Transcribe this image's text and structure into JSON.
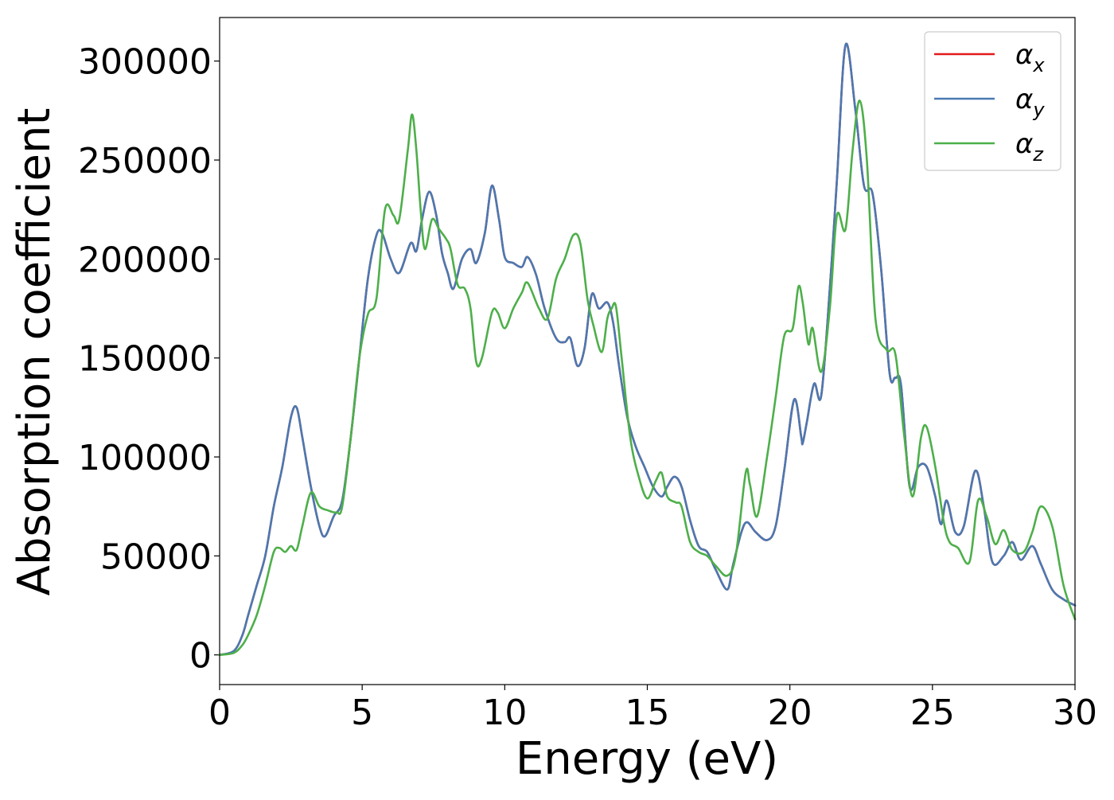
{
  "chart_data": {
    "type": "line",
    "title": "",
    "xlabel": "Energy (eV)",
    "ylabel": "Absorption coefficient",
    "xlim": [
      0,
      30
    ],
    "ylim": [
      -15000,
      322000
    ],
    "xticks": [
      0,
      5,
      10,
      15,
      20,
      25,
      30
    ],
    "xtick_labels": [
      "0",
      "5",
      "10",
      "15",
      "20",
      "25",
      "30"
    ],
    "yticks": [
      0,
      50000,
      100000,
      150000,
      200000,
      250000,
      300000
    ],
    "ytick_labels": [
      "0",
      "50000",
      "100000",
      "150000",
      "200000",
      "250000",
      "300000"
    ],
    "grid": false,
    "legend_position": "top-right",
    "series": [
      {
        "name": "α_x",
        "legend_base": "α",
        "legend_sub": "x",
        "color": "#e41a1c",
        "x": [
          0,
          0.5,
          0.8,
          1,
          1.3,
          1.6,
          1.9,
          2.2,
          2.5,
          2.7,
          2.9,
          3.2,
          3.5,
          3.7,
          4,
          4.3,
          4.6,
          4.9,
          5.2,
          5.5,
          5.7,
          6,
          6.3,
          6.7,
          6.9,
          7.1,
          7.35,
          7.6,
          7.8,
          8,
          8.2,
          8.5,
          8.8,
          9,
          9.3,
          9.55,
          9.8,
          10,
          10.3,
          10.6,
          10.8,
          11.1,
          11.4,
          11.8,
          12.1,
          12.3,
          12.55,
          12.8,
          13.05,
          13.3,
          13.6,
          13.8,
          14,
          14.3,
          14.6,
          14.9,
          15.2,
          15.5,
          15.7,
          15.95,
          16.2,
          16.5,
          16.8,
          17.1,
          17.4,
          17.8,
          18,
          18.3,
          18.5,
          18.8,
          19.2,
          19.5,
          19.8,
          20.15,
          20.4,
          20.45,
          20.6,
          20.85,
          21.1,
          21.4,
          21.65,
          21.95,
          22.3,
          22.6,
          22.9,
          23.2,
          23.5,
          23.7,
          23.9,
          24.2,
          24.5,
          24.8,
          25.1,
          25.3,
          25.5,
          25.8,
          26.1,
          26.5,
          26.8,
          27.1,
          27.5,
          27.8,
          28.1,
          28.5,
          28.8,
          29.2,
          29.6,
          30
        ],
        "y": [
          0,
          2000,
          10000,
          20000,
          35000,
          50000,
          75000,
          95000,
          120000,
          125000,
          110000,
          85000,
          65000,
          60000,
          70000,
          78000,
          110000,
          150000,
          190000,
          212000,
          213000,
          200000,
          193000,
          208000,
          204000,
          220000,
          234000,
          222000,
          203000,
          193000,
          185000,
          200000,
          205000,
          198000,
          213000,
          237000,
          220000,
          201000,
          198000,
          196000,
          201000,
          192000,
          175000,
          160000,
          158000,
          160000,
          146000,
          155000,
          182000,
          175000,
          178000,
          168000,
          147000,
          120000,
          105000,
          95000,
          85000,
          80000,
          85000,
          90000,
          85000,
          68000,
          55000,
          52000,
          43000,
          33000,
          45000,
          62000,
          67000,
          62000,
          58000,
          65000,
          93000,
          129000,
          110000,
          107000,
          118000,
          137000,
          131000,
          185000,
          240000,
          308000,
          275000,
          237000,
          233000,
          195000,
          142000,
          140000,
          136000,
          85000,
          95000,
          95000,
          80000,
          66000,
          78000,
          62000,
          65000,
          93000,
          75000,
          47000,
          50000,
          57000,
          48000,
          55000,
          46000,
          33000,
          28000,
          25000
        ]
      },
      {
        "name": "α_y",
        "legend_base": "α",
        "legend_sub": "y",
        "color": "#4a79b1",
        "x": [
          0,
          0.5,
          0.8,
          1,
          1.3,
          1.6,
          1.9,
          2.2,
          2.5,
          2.7,
          2.9,
          3.2,
          3.5,
          3.7,
          4,
          4.3,
          4.6,
          4.9,
          5.2,
          5.5,
          5.7,
          6,
          6.3,
          6.7,
          6.9,
          7.1,
          7.35,
          7.6,
          7.8,
          8,
          8.2,
          8.5,
          8.8,
          9,
          9.3,
          9.55,
          9.8,
          10,
          10.3,
          10.6,
          10.8,
          11.1,
          11.4,
          11.8,
          12.1,
          12.3,
          12.55,
          12.8,
          13.05,
          13.3,
          13.6,
          13.8,
          14,
          14.3,
          14.6,
          14.9,
          15.2,
          15.5,
          15.7,
          15.95,
          16.2,
          16.5,
          16.8,
          17.1,
          17.4,
          17.8,
          18,
          18.3,
          18.5,
          18.8,
          19.2,
          19.5,
          19.8,
          20.15,
          20.4,
          20.45,
          20.6,
          20.85,
          21.1,
          21.4,
          21.65,
          21.95,
          22.3,
          22.6,
          22.9,
          23.2,
          23.5,
          23.7,
          23.9,
          24.2,
          24.5,
          24.8,
          25.1,
          25.3,
          25.5,
          25.8,
          26.1,
          26.5,
          26.8,
          27.1,
          27.5,
          27.8,
          28.1,
          28.5,
          28.8,
          29.2,
          29.6,
          30
        ],
        "y": [
          0,
          2000,
          10000,
          20000,
          35000,
          50000,
          75000,
          95000,
          120000,
          125000,
          110000,
          85000,
          65000,
          60000,
          70000,
          78000,
          110000,
          150000,
          190000,
          212000,
          213000,
          200000,
          193000,
          208000,
          204000,
          220000,
          234000,
          222000,
          203000,
          193000,
          185000,
          200000,
          205000,
          198000,
          213000,
          237000,
          220000,
          201000,
          198000,
          196000,
          201000,
          192000,
          175000,
          160000,
          158000,
          160000,
          146000,
          155000,
          182000,
          175000,
          178000,
          168000,
          147000,
          120000,
          105000,
          95000,
          85000,
          80000,
          85000,
          90000,
          85000,
          68000,
          55000,
          52000,
          43000,
          33000,
          45000,
          62000,
          67000,
          62000,
          58000,
          65000,
          93000,
          129000,
          110000,
          107000,
          118000,
          137000,
          131000,
          185000,
          240000,
          308000,
          275000,
          237000,
          233000,
          195000,
          142000,
          140000,
          136000,
          85000,
          95000,
          95000,
          80000,
          66000,
          78000,
          62000,
          65000,
          93000,
          75000,
          47000,
          50000,
          57000,
          48000,
          55000,
          46000,
          33000,
          28000,
          25000
        ]
      },
      {
        "name": "α_z",
        "legend_base": "α",
        "legend_sub": "z",
        "color": "#4daf4a",
        "x": [
          0,
          0.5,
          0.8,
          1,
          1.3,
          1.6,
          1.9,
          2.1,
          2.3,
          2.5,
          2.7,
          2.9,
          3.2,
          3.5,
          3.8,
          4.1,
          4.3,
          4.6,
          4.9,
          5.2,
          5.5,
          5.8,
          6.1,
          6.3,
          6.6,
          6.75,
          6.9,
          7.05,
          7.2,
          7.45,
          7.7,
          7.95,
          8.1,
          8.35,
          8.6,
          8.8,
          9,
          9.2,
          9.55,
          9.75,
          10,
          10.3,
          10.6,
          10.8,
          11.2,
          11.5,
          11.8,
          12.1,
          12.4,
          12.65,
          12.9,
          13.1,
          13.4,
          13.6,
          13.75,
          13.9,
          14.1,
          14.4,
          14.7,
          15,
          15.3,
          15.5,
          15.7,
          16,
          16.2,
          16.5,
          16.8,
          17.1,
          17.4,
          17.8,
          18.1,
          18.45,
          18.6,
          18.85,
          19.2,
          19.5,
          19.8,
          20.1,
          20.3,
          20.45,
          20.65,
          20.8,
          21.1,
          21.4,
          21.65,
          21.95,
          22.2,
          22.45,
          22.7,
          23,
          23.4,
          23.7,
          24,
          24.3,
          24.6,
          24.8,
          25.1,
          25.4,
          25.6,
          25.9,
          26.3,
          26.6,
          26.9,
          27.2,
          27.5,
          27.8,
          28.2,
          28.5,
          28.8,
          29.2,
          29.6,
          30
        ],
        "y": [
          0,
          1000,
          5000,
          10000,
          20000,
          35000,
          52000,
          54000,
          52000,
          55000,
          53000,
          65000,
          82000,
          75000,
          73000,
          72000,
          75000,
          110000,
          150000,
          172000,
          180000,
          225000,
          222000,
          220000,
          255000,
          273000,
          255000,
          225000,
          205000,
          220000,
          215000,
          210000,
          205000,
          187000,
          185000,
          175000,
          148000,
          150000,
          173000,
          173000,
          165000,
          175000,
          183000,
          188000,
          175000,
          170000,
          190000,
          200000,
          212000,
          208000,
          180000,
          167000,
          153000,
          170000,
          175000,
          176000,
          150000,
          110000,
          90000,
          79000,
          88000,
          92000,
          80000,
          77000,
          75000,
          57000,
          52000,
          50000,
          45000,
          40000,
          50000,
          92000,
          86000,
          70000,
          100000,
          130000,
          161000,
          165000,
          186000,
          178000,
          157000,
          165000,
          143000,
          175000,
          222000,
          215000,
          255000,
          280000,
          250000,
          170000,
          154000,
          152000,
          112000,
          80000,
          110000,
          115000,
          95000,
          67000,
          57000,
          54000,
          47000,
          78000,
          70000,
          56000,
          63000,
          53000,
          52000,
          62000,
          75000,
          65000,
          35000,
          18000
        ]
      }
    ]
  }
}
